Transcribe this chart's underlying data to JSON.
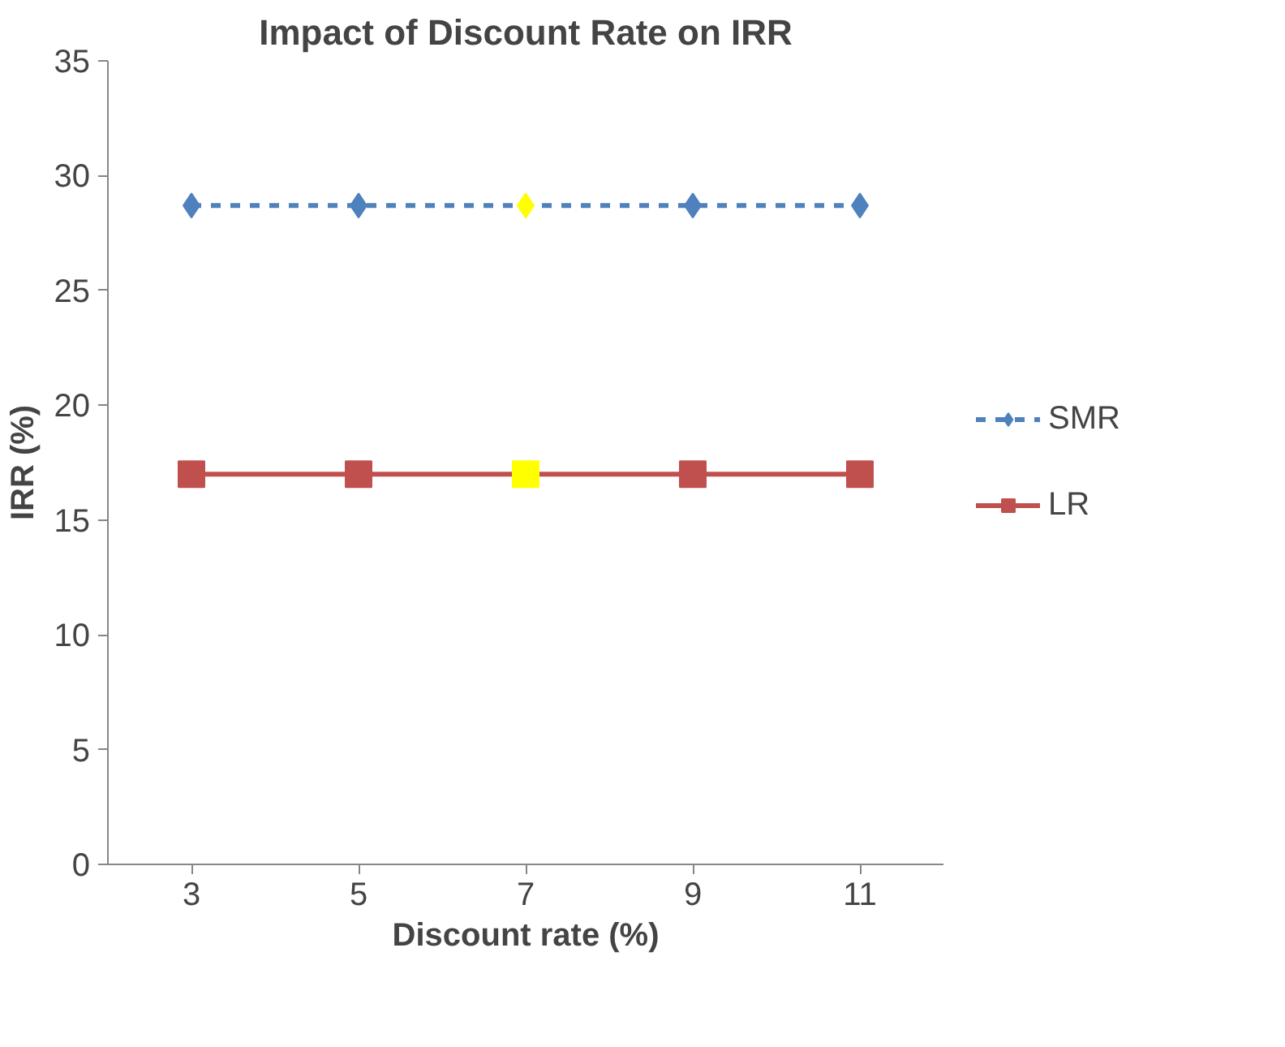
{
  "chart_data": {
    "type": "line",
    "title": "Impact of Discount Rate on IRR",
    "xlabel": "Discount rate (%)",
    "ylabel": "IRR (%)",
    "categories": [
      "3",
      "5",
      "7",
      "9",
      "11"
    ],
    "series": [
      {
        "name": "SMR",
        "color": "#4f81bd",
        "colors": [
          "#4f81bd",
          "#4f81bd",
          "#ffff00",
          "#4f81bd",
          "#4f81bd"
        ],
        "values": [
          28.7,
          28.7,
          28.7,
          28.7,
          28.7
        ],
        "marker": "diamond",
        "line_style": "dashed"
      },
      {
        "name": "LR",
        "color": "#c0504d",
        "colors": [
          "#c0504d",
          "#c0504d",
          "#ffff00",
          "#c0504d",
          "#c0504d"
        ],
        "values": [
          17,
          17,
          17,
          17,
          17
        ],
        "marker": "square",
        "line_style": "solid"
      }
    ],
    "ylim": [
      0,
      35
    ],
    "yticks": [
      0,
      5,
      10,
      15,
      20,
      25,
      30,
      35
    ],
    "grid": false,
    "legend": "right"
  }
}
